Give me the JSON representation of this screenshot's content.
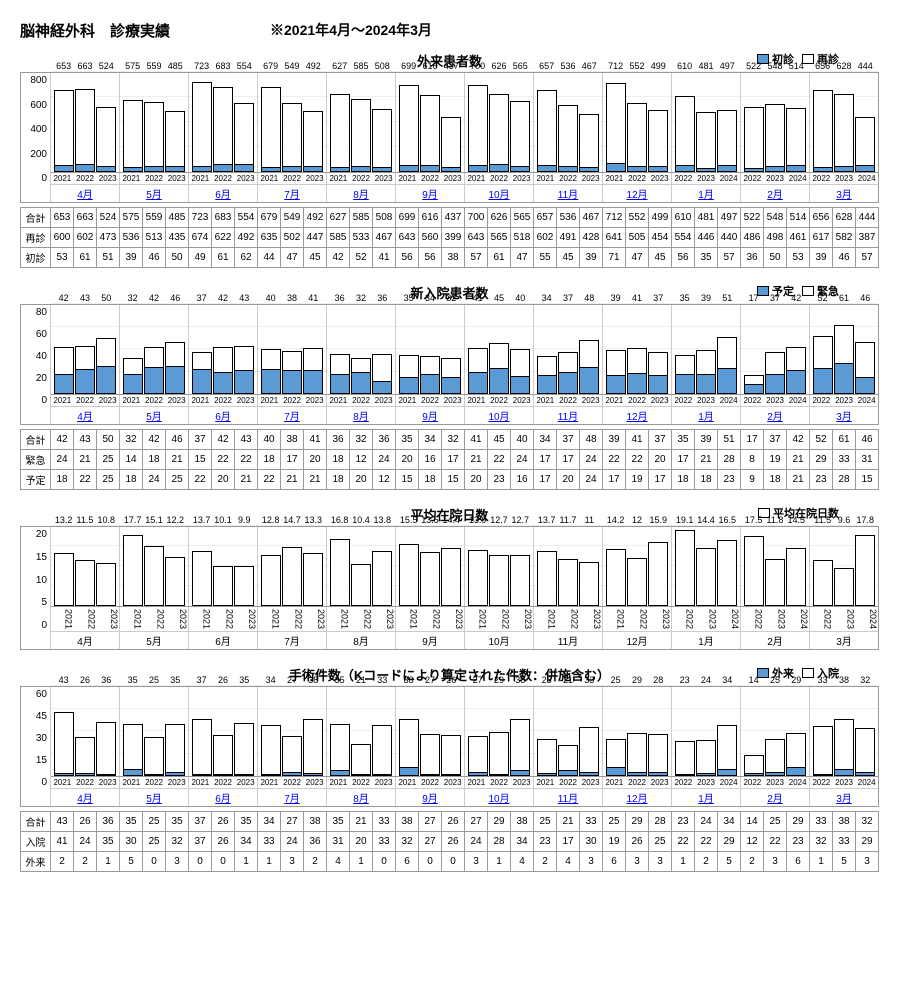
{
  "header": {
    "title": "脳神経外科　診療実績",
    "period": "※2021年4月～2024年3月"
  },
  "months": [
    "4月",
    "5月",
    "6月",
    "7月",
    "8月",
    "9月",
    "10月",
    "11月",
    "12月",
    "1月",
    "2月",
    "3月"
  ],
  "years": [
    "2021",
    "2022",
    "2023"
  ],
  "years_fy": [
    "2022",
    "2023",
    "2024"
  ],
  "outpatient": {
    "title": "外来患者数",
    "legend1": "初診",
    "legend2": "再診",
    "c1": "#5b9bd5",
    "c2": "#ffffff",
    "border": "#000000",
    "ymax": 800,
    "yticks": [
      800,
      600,
      400,
      200,
      0
    ],
    "total": [
      [
        653,
        663,
        524
      ],
      [
        575,
        559,
        485
      ],
      [
        723,
        683,
        554
      ],
      [
        679,
        549,
        492
      ],
      [
        627,
        585,
        508
      ],
      [
        699,
        616,
        437
      ],
      [
        700,
        626,
        565
      ],
      [
        657,
        536,
        467
      ],
      [
        712,
        552,
        499
      ],
      [
        610,
        481,
        497
      ],
      [
        522,
        548,
        514
      ],
      [
        656,
        628,
        444
      ]
    ],
    "return": [
      [
        600,
        602,
        473
      ],
      [
        536,
        513,
        435
      ],
      [
        674,
        622,
        492
      ],
      [
        635,
        502,
        447
      ],
      [
        585,
        533,
        467
      ],
      [
        643,
        560,
        399
      ],
      [
        643,
        565,
        518
      ],
      [
        602,
        491,
        428
      ],
      [
        641,
        505,
        454
      ],
      [
        554,
        446,
        440
      ],
      [
        486,
        498,
        461
      ],
      [
        617,
        582,
        387
      ]
    ],
    "first": [
      [
        53,
        61,
        51
      ],
      [
        39,
        46,
        50
      ],
      [
        49,
        61,
        62
      ],
      [
        44,
        47,
        45
      ],
      [
        42,
        52,
        41
      ],
      [
        56,
        56,
        38
      ],
      [
        57,
        61,
        47
      ],
      [
        55,
        45,
        39
      ],
      [
        71,
        47,
        45
      ],
      [
        56,
        35,
        57
      ],
      [
        36,
        50,
        53
      ],
      [
        39,
        46,
        57
      ]
    ],
    "rows": [
      "合計",
      "再診",
      "初診"
    ]
  },
  "inpatient": {
    "title": "新入院患者数",
    "legend1": "予定",
    "legend2": "緊急",
    "c1": "#5b9bd5",
    "c2": "#ffffff",
    "border": "#000000",
    "ymax": 80,
    "yticks": [
      80,
      60,
      40,
      20,
      0
    ],
    "total": [
      [
        42,
        43,
        50
      ],
      [
        32,
        42,
        46
      ],
      [
        37,
        42,
        43
      ],
      [
        40,
        38,
        41
      ],
      [
        36,
        32,
        36
      ],
      [
        35,
        34,
        32
      ],
      [
        41,
        45,
        40
      ],
      [
        34,
        37,
        48
      ],
      [
        39,
        41,
        37
      ],
      [
        35,
        39,
        51
      ],
      [
        17,
        37,
        42
      ],
      [
        52,
        61,
        46
      ]
    ],
    "emerg": [
      [
        24,
        21,
        25
      ],
      [
        14,
        18,
        21
      ],
      [
        15,
        22,
        22
      ],
      [
        18,
        17,
        20
      ],
      [
        18,
        12,
        24
      ],
      [
        20,
        16,
        17
      ],
      [
        21,
        22,
        24
      ],
      [
        17,
        17,
        24
      ],
      [
        22,
        22,
        20
      ],
      [
        17,
        21,
        28
      ],
      [
        8,
        19,
        21
      ],
      [
        29,
        33,
        31
      ]
    ],
    "plan": [
      [
        18,
        22,
        25
      ],
      [
        18,
        24,
        25
      ],
      [
        22,
        20,
        21
      ],
      [
        22,
        21,
        21
      ],
      [
        18,
        20,
        12
      ],
      [
        15,
        18,
        15
      ],
      [
        20,
        23,
        16
      ],
      [
        17,
        20,
        24
      ],
      [
        17,
        19,
        17
      ],
      [
        18,
        18,
        23
      ],
      [
        9,
        18,
        21
      ],
      [
        23,
        28,
        15
      ]
    ],
    "rows": [
      "合計",
      "緊急",
      "予定"
    ]
  },
  "los": {
    "title": "平均在院日数",
    "legend": "平均在院日数",
    "c": "#ffffff",
    "border": "#000000",
    "ymax": 20,
    "yticks": [
      20,
      15,
      10,
      5,
      0
    ],
    "values": [
      [
        13.2,
        11.5,
        10.8
      ],
      [
        17.7,
        15.1,
        12.2
      ],
      [
        13.7,
        10.1,
        9.9
      ],
      [
        12.8,
        14.7,
        13.3
      ],
      [
        16.8,
        10.4,
        13.8
      ],
      [
        15.5,
        13.5,
        14.4
      ],
      [
        13.9,
        12.7,
        12.7
      ],
      [
        13.7,
        11.7,
        11.0
      ],
      [
        14.2,
        12.0,
        15.9
      ],
      [
        19.1,
        14.4,
        16.5
      ],
      [
        17.5,
        11.8,
        14.5
      ],
      [
        11.5,
        9.6,
        17.8
      ]
    ]
  },
  "surgery": {
    "title": "手術件数（Kコードにより算定された件数：併施含む）",
    "legend1": "外来",
    "legend2": "入院",
    "c1": "#5b9bd5",
    "c2": "#ffffff",
    "border": "#000000",
    "ymax": 60,
    "yticks": [
      60,
      45,
      30,
      15,
      0
    ],
    "total": [
      [
        43,
        26,
        36
      ],
      [
        35,
        25,
        35
      ],
      [
        37,
        26,
        35
      ],
      [
        34,
        27,
        38
      ],
      [
        35,
        21,
        33
      ],
      [
        38,
        27,
        26
      ],
      [
        27,
        29,
        38
      ],
      [
        25,
        21,
        33
      ],
      [
        25,
        29,
        28
      ],
      [
        23,
        24,
        34
      ],
      [
        14,
        25,
        29
      ],
      [
        33,
        38,
        32
      ]
    ],
    "inp": [
      [
        41,
        24,
        35
      ],
      [
        30,
        25,
        32
      ],
      [
        37,
        26,
        34
      ],
      [
        33,
        24,
        36
      ],
      [
        31,
        20,
        33
      ],
      [
        32,
        27,
        26
      ],
      [
        24,
        28,
        34
      ],
      [
        23,
        17,
        30
      ],
      [
        19,
        26,
        25
      ],
      [
        22,
        22,
        29
      ],
      [
        12,
        22,
        23
      ],
      [
        32,
        33,
        29
      ]
    ],
    "out": [
      [
        2,
        2,
        1
      ],
      [
        5,
        0,
        3
      ],
      [
        0,
        0,
        1
      ],
      [
        1,
        3,
        2
      ],
      [
        4,
        1,
        0
      ],
      [
        6,
        0,
        0
      ],
      [
        3,
        1,
        4
      ],
      [
        2,
        4,
        3
      ],
      [
        6,
        3,
        3
      ],
      [
        1,
        2,
        5
      ],
      [
        2,
        3,
        6
      ],
      [
        1,
        5,
        3
      ]
    ],
    "rows": [
      "合計",
      "入院",
      "外来"
    ]
  }
}
